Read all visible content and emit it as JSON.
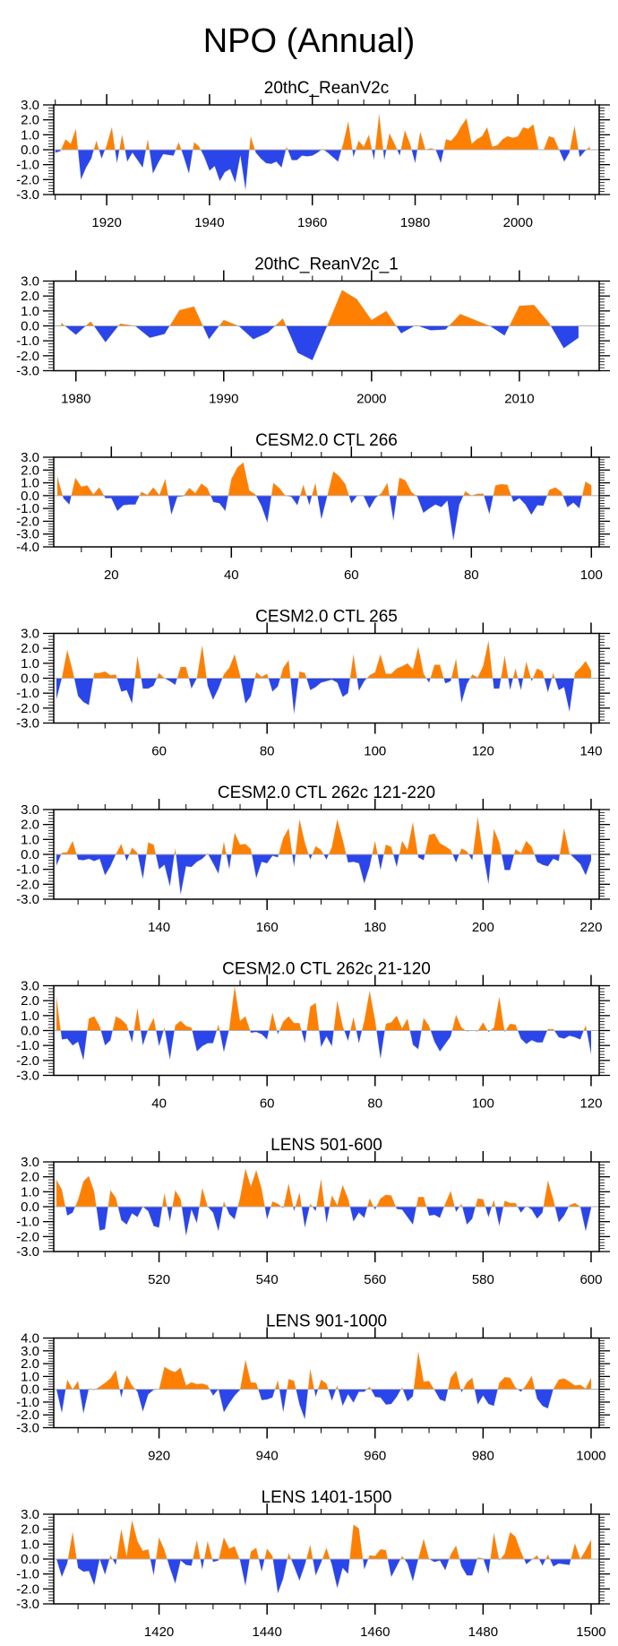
{
  "title": "NPO (Annual)",
  "colors": {
    "positive": "#ff8000",
    "negative": "#2a45ea",
    "zero_line": "#b0b0b0",
    "axis": "#000000"
  },
  "chart_data": [
    {
      "type": "area",
      "title": "20thC_ReanV2c",
      "x_start": 1910,
      "xlim": [
        1909.7,
        2015.8
      ],
      "ylim": [
        -3,
        3
      ],
      "xticks": [
        1920,
        1940,
        1960,
        1980,
        2000
      ],
      "xtick_labels": [
        "1920",
        "1940",
        "1960",
        "1980",
        "2000"
      ],
      "x_minor_step": 5,
      "yticks": [
        3,
        2,
        1,
        0,
        -1,
        -2,
        -3
      ],
      "ytick_labels": [
        "3.0",
        "2.0",
        "1.0",
        "0.0",
        "-1.0",
        "-2.0",
        "-3.0"
      ],
      "values": [
        -0.2,
        -0.1,
        0.7,
        0.4,
        1.4,
        -2.0,
        -1.2,
        -0.6,
        0.6,
        -0.6,
        0.3,
        1.5,
        -0.9,
        1.0,
        -0.8,
        -0.2,
        -0.7,
        -1.2,
        0.7,
        -1.6,
        -0.9,
        -0.3,
        -0.35,
        -0.4,
        0.5,
        -0.5,
        -1.6,
        0.5,
        0.2,
        -0.5,
        -1.4,
        -1.1,
        -2.1,
        -1.5,
        -1.3,
        -2.2,
        -0.4,
        -2.7,
        0.9,
        -0.2,
        -0.6,
        -0.9,
        -0.95,
        -0.8,
        -1.2,
        0.2,
        -0.7,
        -0.7,
        -0.4,
        -0.45,
        -0.4,
        -0.2,
        0.05,
        -0.2,
        -0.5,
        -0.8,
        0.4,
        1.9,
        -0.5,
        0.6,
        0.2,
        1.0,
        -0.7,
        2.4,
        -0.7,
        1.1,
        0.4,
        -0.4,
        1.3,
        0.4,
        -0.9,
        1.2,
        0.0,
        0.1,
        0.0,
        -0.9,
        0.7,
        0.6,
        1.0,
        1.6,
        2.1,
        0.4,
        0.7,
        0.9,
        1.5,
        0.2,
        0.3,
        0.7,
        0.9,
        0.8,
        0.9,
        1.5,
        1.4,
        1.7,
        0.0,
        0.0,
        0.9,
        0.8,
        0.0,
        -0.8,
        -0.2,
        1.6,
        -0.5,
        -0.1,
        0.2
      ]
    },
    {
      "type": "area",
      "title": "20thC_ReanV2c_1",
      "x_start": 1979,
      "xlim": [
        1978.5,
        2015.4
      ],
      "ylim": [
        -3,
        3
      ],
      "xticks": [
        1980,
        1990,
        2000,
        2010
      ],
      "xtick_labels": [
        "1980",
        "1990",
        "2000",
        "2010"
      ],
      "x_minor_step": 2,
      "yticks": [
        3,
        2,
        1,
        0,
        -1,
        -2,
        -3
      ],
      "ytick_labels": [
        "3.0",
        "2.0",
        "1.0",
        "0.0",
        "-1.0",
        "-2.0",
        "-3.0"
      ],
      "values": [
        0.2,
        -0.6,
        0.3,
        -1.1,
        0.15,
        0.0,
        -0.8,
        -0.55,
        1.05,
        1.3,
        -0.9,
        0.4,
        0.0,
        -0.9,
        -0.45,
        0.5,
        -1.8,
        -2.3,
        0.0,
        2.4,
        1.8,
        0.4,
        1.0,
        -0.5,
        0.05,
        -0.3,
        -0.25,
        0.8,
        0.4,
        0.0,
        -0.65,
        1.35,
        1.4,
        0.2,
        -1.5,
        -0.8
      ]
    },
    {
      "type": "area",
      "title": "CESM2.0 CTL 266",
      "x_start": 11,
      "xlim": [
        10.4,
        101.3
      ],
      "ylim": [
        -4,
        3
      ],
      "xticks": [
        20,
        40,
        60,
        80,
        100
      ],
      "xtick_labels": [
        "20",
        "40",
        "60",
        "80",
        "100"
      ],
      "x_minor_step": 5,
      "yticks": [
        3,
        2,
        1,
        0,
        -1,
        -2,
        -3,
        -4
      ],
      "ytick_labels": [
        "3.0",
        "2.0",
        "1.0",
        "0.0",
        "-1.0",
        "-2.0",
        "-3.0",
        "-4.0"
      ],
      "values": [
        1.5,
        -0.2,
        -0.7,
        1.4,
        0.7,
        0.8,
        0.1,
        0.65,
        -0.2,
        -0.2,
        -1.2,
        -0.75,
        -0.7,
        -0.7,
        0.3,
        0.05,
        0.65,
        0.05,
        1.3,
        -1.5,
        -0.1,
        -0.05,
        0.6,
        0.2,
        0.95,
        0.6,
        -0.5,
        -0.6,
        -1.2,
        1.3,
        2.2,
        2.6,
        0.4,
        0.1,
        -0.8,
        -2.1,
        1.0,
        0.6,
        0.0,
        -0.1,
        -0.75,
        0.85,
        -0.75,
        1.0,
        -1.85,
        0.0,
        1.9,
        1.5,
        0.9,
        -0.6,
        0.0,
        0.0,
        -1.0,
        -0.2,
        0.2,
        1.0,
        -1.95,
        1.4,
        1.2,
        0.3,
        -0.1,
        -1.35,
        -1.0,
        -0.7,
        -0.9,
        -0.4,
        -3.5,
        -0.7,
        0.35,
        0.0,
        0.15,
        0.15,
        -1.45,
        0.8,
        0.9,
        0.85,
        -0.5,
        -0.2,
        -0.7,
        -1.5,
        -0.75,
        -0.8,
        0.45,
        0.65,
        0.3,
        -0.9,
        -0.55,
        -1.0,
        1.1,
        0.8
      ]
    },
    {
      "type": "area",
      "title": "CESM2.0 CTL 265",
      "x_start": 41,
      "xlim": [
        40.5,
        141.5
      ],
      "ylim": [
        -3,
        3
      ],
      "xticks": [
        60,
        80,
        100,
        120,
        140
      ],
      "xtick_labels": [
        "60",
        "80",
        "100",
        "120",
        "140"
      ],
      "x_minor_step": 5,
      "yticks": [
        3,
        2,
        1,
        0,
        -1,
        -2,
        -3
      ],
      "ytick_labels": [
        "3.0",
        "2.0",
        "1.0",
        "0.0",
        "-1.0",
        "-2.0",
        "-3.0"
      ],
      "values": [
        -1.4,
        0.0,
        1.9,
        0.5,
        -1.2,
        -1.6,
        -1.8,
        0.35,
        0.35,
        0.45,
        0.2,
        0.25,
        -0.9,
        -0.8,
        -1.7,
        1.5,
        -0.7,
        -0.7,
        -0.5,
        0.35,
        0.0,
        -0.2,
        -0.45,
        0.75,
        0.75,
        -0.7,
        0.0,
        2.2,
        -0.5,
        -1.45,
        -0.7,
        0.25,
        0.7,
        1.6,
        0.2,
        -1.7,
        -1.2,
        0.4,
        0.1,
        0.3,
        -0.9,
        -0.55,
        0.7,
        1.2,
        -2.4,
        0.45,
        0.35,
        -0.8,
        -0.6,
        -0.3,
        -0.2,
        -0.1,
        -0.3,
        -1.25,
        -1.0,
        1.6,
        -0.85,
        -0.2,
        0.2,
        0.4,
        1.6,
        0.3,
        0.3,
        0.65,
        0.8,
        1.0,
        0.6,
        2.1,
        0.3,
        -0.3,
        0.9,
        0.9,
        -0.35,
        -0.2,
        1.3,
        -1.65,
        -0.4,
        0.25,
        0.05,
        0.8,
        2.5,
        -0.7,
        -0.7,
        1.5,
        -0.8,
        0.65,
        -0.8,
        1.1,
        -0.2,
        0.65,
        0.45,
        -0.95,
        0.35,
        -0.8,
        -0.6,
        -2.25,
        0.35,
        0.7,
        1.15,
        0.5
      ]
    },
    {
      "type": "area",
      "title": "CESM2.0 CTL 262c 121-220",
      "x_start": 121,
      "xlim": [
        120.5,
        221.5
      ],
      "ylim": [
        -3,
        3
      ],
      "xticks": [
        140,
        160,
        180,
        200,
        220
      ],
      "xtick_labels": [
        "140",
        "160",
        "180",
        "200",
        "220"
      ],
      "x_minor_step": 5,
      "yticks": [
        3,
        2,
        1,
        0,
        -1,
        -2,
        -3
      ],
      "ytick_labels": [
        "3.0",
        "2.0",
        "1.0",
        "0.0",
        "-1.0",
        "-2.0",
        "-3.0"
      ],
      "values": [
        -0.75,
        0.1,
        0.15,
        0.9,
        -0.35,
        -0.4,
        -0.3,
        -0.45,
        -0.3,
        -1.4,
        -0.8,
        0.0,
        0.7,
        -0.45,
        0.45,
        0.1,
        -1.65,
        0.8,
        0.65,
        -1.0,
        -0.7,
        -2.15,
        0.4,
        -2.7,
        -0.8,
        -0.85,
        -0.5,
        -0.3,
        0.05,
        -0.6,
        -1.3,
        0.85,
        -1.0,
        1.45,
        0.65,
        0.7,
        0.35,
        -1.6,
        -0.5,
        -0.6,
        -0.1,
        -0.2,
        1.1,
        1.75,
        -0.85,
        2.35,
        0.8,
        -0.35,
        0.55,
        0.3,
        -0.35,
        0.5,
        2.35,
        1.0,
        -0.55,
        -0.5,
        -0.6,
        -1.95,
        -0.8,
        0.9,
        -1.05,
        0.65,
        0.5,
        -0.85,
        0.9,
        0.3,
        2.15,
        -0.2,
        -0.4,
        1.3,
        1.4,
        0.75,
        0.55,
        0.3,
        -0.55,
        0.4,
        0.2,
        -0.4,
        2.5,
        0.1,
        -2.0,
        1.7,
        0.8,
        -1.05,
        -1.05,
        0.35,
        0.1,
        0.9,
        0.5,
        -0.5,
        -0.7,
        -0.8,
        -0.3,
        -0.45,
        1.75,
        0.05,
        -0.3,
        -0.65,
        -1.4,
        -0.4
      ]
    },
    {
      "type": "area",
      "title": "CESM2.0 CTL 262c 21-120",
      "x_start": 21,
      "xlim": [
        20.5,
        121.5
      ],
      "ylim": [
        -3,
        3
      ],
      "xticks": [
        40,
        60,
        80,
        100,
        120
      ],
      "xtick_labels": [
        "40",
        "60",
        "80",
        "100",
        "120"
      ],
      "x_minor_step": 5,
      "yticks": [
        3,
        2,
        1,
        0,
        -1,
        -2,
        -3
      ],
      "ytick_labels": [
        "3.0",
        "2.0",
        "1.0",
        "0.0",
        "-1.0",
        "-2.0",
        "-3.0"
      ],
      "values": [
        2.25,
        -0.6,
        -0.55,
        -1.0,
        -0.75,
        -2.0,
        0.8,
        0.95,
        0.3,
        -1.0,
        -0.65,
        0.95,
        0.75,
        0.4,
        -0.8,
        1.5,
        -1.0,
        0.1,
        0.85,
        -1.05,
        0.2,
        -1.95,
        0.35,
        0.65,
        0.3,
        0.2,
        -1.4,
        -1.05,
        -0.85,
        -0.85,
        0.4,
        -1.45,
        0.1,
        2.95,
        0.65,
        0.95,
        -0.15,
        -0.1,
        -0.25,
        -0.6,
        1.2,
        -0.25,
        0.6,
        0.95,
        0.5,
        0.5,
        -0.85,
        1.6,
        1.85,
        -1.1,
        -0.4,
        -1.05,
        2.0,
        0.3,
        -0.7,
        0.9,
        -0.85,
        0.65,
        2.65,
        0.7,
        -1.9,
        0.45,
        0.55,
        1.0,
        0.15,
        0.8,
        -0.95,
        -1.25,
        0.85,
        0.3,
        -0.75,
        -1.4,
        -0.9,
        -0.4,
        1.05,
        0.2,
        -0.05,
        0.0,
        -0.05,
        0.55,
        -0.1,
        0.2,
        2.25,
        -0.1,
        0.45,
        0.4,
        -0.55,
        -0.9,
        -0.65,
        -0.8,
        -0.8,
        0.1,
        0.1,
        -0.45,
        -0.55,
        -0.35,
        -0.45,
        -0.6,
        0.35,
        -1.6
      ]
    },
    {
      "type": "area",
      "title": "LENS 501-600",
      "x_start": 501,
      "xlim": [
        500.5,
        601.5
      ],
      "ylim": [
        -3,
        3
      ],
      "xticks": [
        520,
        540,
        560,
        580,
        600
      ],
      "xtick_labels": [
        "520",
        "540",
        "560",
        "580",
        "600"
      ],
      "x_minor_step": 5,
      "yticks": [
        3,
        2,
        1,
        0,
        -1,
        -2,
        -3
      ],
      "ytick_labels": [
        "3.0",
        "2.0",
        "1.0",
        "0.0",
        "-1.0",
        "-2.0",
        "-3.0"
      ],
      "values": [
        1.8,
        1.15,
        -0.6,
        -0.4,
        0.45,
        1.7,
        2.05,
        1.0,
        -1.6,
        -1.5,
        1.1,
        0.6,
        -0.9,
        -1.2,
        -0.45,
        -0.7,
        0.0,
        -0.3,
        -1.3,
        -1.4,
        0.9,
        -1.0,
        1.1,
        0.5,
        -1.95,
        -0.2,
        -1.1,
        1.25,
        0.0,
        -0.4,
        -1.65,
        0.35,
        -0.5,
        -0.85,
        0.6,
        2.55,
        1.35,
        2.45,
        1.2,
        -0.85,
        0.35,
        0.2,
        -0.1,
        1.55,
        -0.3,
        0.95,
        -1.4,
        0.2,
        -0.3,
        1.85,
        -1.1,
        0.75,
        0.1,
        1.45,
        0.55,
        -1.0,
        -0.4,
        -0.75,
        0.55,
        -0.2,
        0.55,
        0.8,
        0.75,
        -0.15,
        -0.2,
        -0.7,
        -1.2,
        0.65,
        0.65,
        -0.6,
        -0.55,
        -0.75,
        0.2,
        1.05,
        -0.35,
        0.2,
        -1.2,
        -0.8,
        0.55,
        0.5,
        -0.7,
        0.45,
        -1.3,
        0.4,
        0.25,
        0.25,
        -0.4,
        0.05,
        -0.2,
        -0.8,
        -0.4,
        1.75,
        0.5,
        -1.05,
        -0.6,
        0.1,
        0.25,
        0.0,
        -1.65,
        -0.1
      ]
    },
    {
      "type": "area",
      "title": "LENS 901-1000",
      "x_start": 901,
      "xlim": [
        900.5,
        1001.5
      ],
      "ylim": [
        -3,
        4
      ],
      "xticks": [
        920,
        940,
        960,
        980,
        1000
      ],
      "xtick_labels": [
        "920",
        "940",
        "960",
        "980",
        "1000"
      ],
      "x_minor_step": 5,
      "yticks": [
        4,
        3,
        2,
        1,
        0,
        -1,
        -2,
        -3
      ],
      "ytick_labels": [
        "4.0",
        "3.0",
        "2.0",
        "1.0",
        "0.0",
        "-1.0",
        "-2.0",
        "-3.0"
      ],
      "values": [
        0.0,
        -1.85,
        0.75,
        0.0,
        0.65,
        -1.9,
        0.05,
        -0.05,
        0.2,
        0.5,
        0.85,
        1.5,
        -0.65,
        1.1,
        0.3,
        -0.2,
        -1.75,
        -0.4,
        -0.05,
        0.0,
        1.75,
        1.5,
        1.35,
        1.7,
        0.3,
        0.55,
        0.4,
        0.45,
        0.3,
        -0.5,
        0.0,
        -1.8,
        -1.1,
        -0.5,
        -0.05,
        2.3,
        0.55,
        0.5,
        -0.85,
        -0.8,
        -0.65,
        0.7,
        -1.8,
        0.8,
        0.65,
        -1.2,
        -2.35,
        1.6,
        -0.6,
        0.75,
        0.45,
        -0.9,
        0.3,
        -1.3,
        -0.4,
        -1.05,
        -0.2,
        -0.2,
        0.2,
        -0.6,
        -0.65,
        -1.2,
        -1.15,
        -0.6,
        0.15,
        -0.95,
        -0.55,
        2.95,
        0.6,
        0.65,
        -0.05,
        -0.8,
        -0.95,
        0.9,
        1.45,
        -0.25,
        0.55,
        0.9,
        -1.2,
        -0.5,
        -1.15,
        -1.3,
        0.5,
        0.95,
        0.9,
        0.15,
        -0.2,
        0.35,
        1.05,
        -0.75,
        -1.3,
        -1.5,
        0.0,
        0.75,
        0.85,
        0.6,
        0.3,
        0.35,
        0.05,
        0.9
      ]
    },
    {
      "type": "area",
      "title": "LENS 1401-1500",
      "x_start": 1401,
      "xlim": [
        1400.5,
        1501.5
      ],
      "ylim": [
        -3,
        3
      ],
      "xticks": [
        1420,
        1440,
        1460,
        1480,
        1500
      ],
      "xtick_labels": [
        "1420",
        "1440",
        "1460",
        "1480",
        "1500"
      ],
      "x_minor_step": 5,
      "yticks": [
        3,
        2,
        1,
        0,
        -1,
        -2,
        -3
      ],
      "ytick_labels": [
        "3.0",
        "2.0",
        "1.0",
        "0.0",
        "-1.0",
        "-2.0",
        "-3.0"
      ],
      "values": [
        0.0,
        -1.2,
        -0.3,
        1.8,
        -0.6,
        -0.85,
        -0.8,
        -1.75,
        0.0,
        -1.05,
        0.25,
        -0.4,
        2.0,
        0.2,
        2.6,
        1.2,
        0.55,
        0.65,
        -1.1,
        1.45,
        0.6,
        -0.6,
        -1.65,
        -0.1,
        -0.4,
        -0.45,
        1.25,
        -0.7,
        1.2,
        -0.2,
        -0.1,
        1.45,
        0.7,
        0.85,
        -0.1,
        -1.8,
        0.5,
        0.75,
        -0.85,
        0.7,
        0.2,
        -2.3,
        -1.3,
        0.4,
        -0.5,
        -1.45,
        -0.4,
        0.95,
        -1.1,
        -0.25,
        0.75,
        -0.4,
        -1.95,
        -0.6,
        -1.0,
        2.3,
        2.05,
        -0.7,
        0.25,
        0.2,
        0.65,
        0.6,
        -1.2,
        -0.5,
        0.2,
        -0.3,
        -1.5,
        0.0,
        1.35,
        0.0,
        -0.2,
        -0.1,
        -0.75,
        0.3,
        0.9,
        -0.5,
        -1.1,
        -1.1,
        0.1,
        0.05,
        -1.0,
        1.75,
        -0.1,
        0.35,
        1.8,
        1.5,
        0.5,
        -0.35,
        -0.05,
        0.25,
        -0.45,
        0.3,
        -0.5,
        -0.3,
        -0.35,
        -0.4,
        1.05,
        0.0,
        0.6,
        1.3
      ]
    }
  ]
}
